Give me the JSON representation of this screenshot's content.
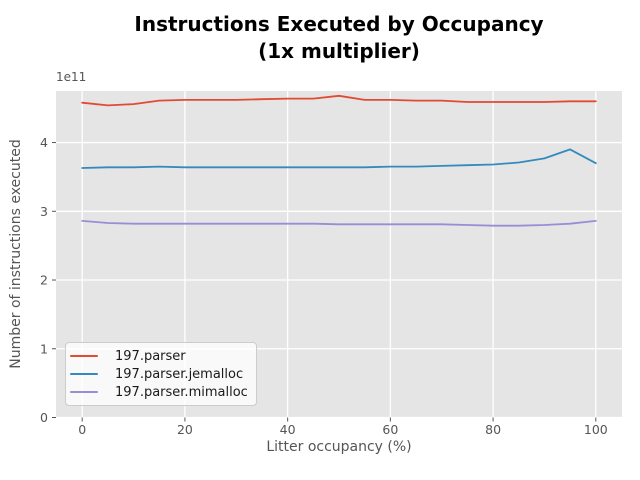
{
  "chart_data": {
    "type": "line",
    "title": "Instructions Executed by Occupancy",
    "subtitle": "(1x multiplier)",
    "xlabel": "Litter occupancy (%)",
    "ylabel": "Number of instructions executed",
    "y_offset_text": "1e11",
    "y_units": "values are in multiples of 1e11 instructions",
    "x": [
      0,
      5,
      10,
      15,
      20,
      25,
      30,
      35,
      40,
      45,
      50,
      55,
      60,
      65,
      70,
      75,
      80,
      85,
      90,
      95,
      100
    ],
    "series": [
      {
        "name": "197.parser",
        "color": "#E24A33",
        "values": [
          4.58,
          4.54,
          4.56,
          4.61,
          4.62,
          4.62,
          4.62,
          4.63,
          4.64,
          4.64,
          4.68,
          4.62,
          4.62,
          4.61,
          4.61,
          4.59,
          4.59,
          4.59,
          4.59,
          4.6,
          4.6
        ]
      },
      {
        "name": "197.parser.jemalloc",
        "color": "#348ABD",
        "values": [
          3.63,
          3.64,
          3.64,
          3.65,
          3.64,
          3.64,
          3.64,
          3.64,
          3.64,
          3.64,
          3.64,
          3.64,
          3.65,
          3.65,
          3.66,
          3.67,
          3.68,
          3.71,
          3.77,
          3.9,
          3.7
        ]
      },
      {
        "name": "197.parser.mimalloc",
        "color": "#988ED5",
        "values": [
          2.86,
          2.83,
          2.82,
          2.82,
          2.82,
          2.82,
          2.82,
          2.82,
          2.82,
          2.82,
          2.81,
          2.81,
          2.81,
          2.81,
          2.81,
          2.8,
          2.79,
          2.79,
          2.8,
          2.82,
          2.86
        ]
      }
    ],
    "xticks": [
      0,
      20,
      40,
      60,
      80,
      100
    ],
    "yticks": [
      0,
      1,
      2,
      3,
      4
    ],
    "xlim": [
      -5.1,
      105.1
    ],
    "ylim": [
      0,
      4.75
    ],
    "grid": true,
    "legend_position": "lower left"
  },
  "colors": {
    "figure_bg": "#ffffff",
    "axes_bg": "#e5e5e5",
    "gridline": "#ffffff",
    "tick_text": "#555555",
    "title_text": "#000000",
    "legend_border": "#cccccc"
  }
}
